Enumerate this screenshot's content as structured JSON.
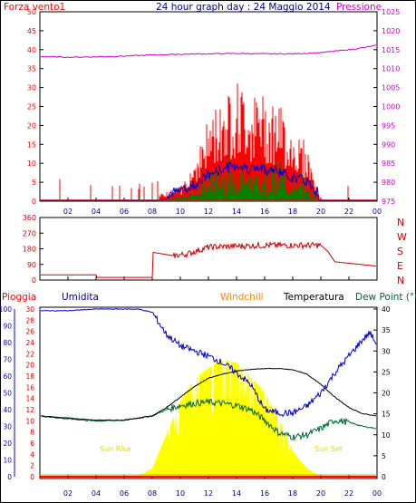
{
  "header": {
    "title": "24 hour graph day : 24 Maggio 2014",
    "left_label": "Forza vento1",
    "right_label": "Pressione"
  },
  "wind_panel": {
    "y_ticks_left": [
      "0",
      "5",
      "10",
      "15",
      "20",
      "25",
      "30",
      "35",
      "40",
      "45",
      "50"
    ],
    "y_ticks_right": [
      "975",
      "980",
      "985",
      "990",
      "995",
      "1000",
      "1005",
      "1010",
      "1015",
      "1020",
      "1025"
    ]
  },
  "direction_panel": {
    "y_ticks": [
      "0",
      "90",
      "180",
      "270",
      "360"
    ],
    "compass": [
      "N",
      "W",
      "S",
      "E",
      "N"
    ]
  },
  "bottom_panel": {
    "labels": {
      "rain": "Pioggia",
      "humidity": "Umidita",
      "windchill": "Windchill",
      "temperature": "Temperatura",
      "dewpoint": "Dew Point (°C"
    },
    "y_ticks_rain": [
      "0",
      "2",
      "4",
      "6",
      "8",
      "10",
      "12",
      "14",
      "16",
      "18",
      "20",
      "22",
      "24",
      "26",
      "28",
      "30"
    ],
    "y_ticks_humidity": [
      "0",
      "10",
      "20",
      "30",
      "40",
      "50",
      "60",
      "70",
      "80",
      "90",
      "100"
    ],
    "y_ticks_temp": [
      "0",
      "5",
      "10",
      "15",
      "20",
      "25",
      "30",
      "35",
      "40"
    ],
    "sun_rise": "Sun Rise",
    "sun_set": "Sun Set"
  },
  "x_ticks": [
    "02",
    "04",
    "06",
    "08",
    "10",
    "12",
    "14",
    "16",
    "18",
    "20",
    "22",
    "00"
  ],
  "colors": {
    "wind": "#ff0000",
    "gust_green": "#008000",
    "wind_avg": "#0000cc",
    "pressure": "#cc00cc",
    "direction": "#cc0000",
    "humidity": "#0000cc",
    "temperature": "#000000",
    "dewpoint": "#006633",
    "solar": "#ffff00",
    "rain": "#ff0000",
    "windchill": "#ff8800"
  },
  "chart_data": [
    {
      "type": "line",
      "title": "24 hour graph day : 24 Maggio 2014",
      "series": [
        {
          "name": "Forza vento1",
          "x": [
            0,
            2,
            4,
            6,
            8,
            10,
            11,
            12,
            13,
            14,
            15,
            16,
            17,
            18,
            19,
            19.5,
            20,
            22,
            24
          ],
          "values": [
            1,
            1,
            0,
            0,
            1,
            3,
            9,
            17,
            22,
            25,
            22,
            22,
            20,
            15,
            12,
            6,
            0,
            0,
            0
          ]
        },
        {
          "name": "Pressione",
          "x": [
            0,
            2,
            4,
            6,
            8,
            10,
            12,
            14,
            16,
            18,
            20,
            22,
            23,
            24
          ],
          "values": [
            1013.2,
            1013.0,
            1013.1,
            1013.3,
            1013.6,
            1013.8,
            1013.9,
            1014.0,
            1013.9,
            1013.9,
            1014.2,
            1015.0,
            1015.5,
            1016.2
          ]
        }
      ],
      "ylim_left": [
        0,
        50
      ],
      "ylim_right": [
        975,
        1025
      ]
    },
    {
      "type": "line",
      "series": [
        {
          "x": [
            0,
            4,
            4.01,
            8,
            8.01,
            9.5,
            10.5,
            12,
            14,
            16,
            18,
            20,
            20.5,
            21,
            24
          ],
          "values": [
            30,
            30,
            15,
            15,
            160,
            140,
            150,
            190,
            195,
            200,
            200,
            200,
            165,
            105,
            80
          ]
        }
      ],
      "ylim": [
        0,
        360
      ]
    },
    {
      "type": "line",
      "series": [
        {
          "name": "Umidita",
          "x": [
            0,
            2,
            4,
            6,
            7,
            8,
            9,
            10,
            11,
            12,
            13,
            14,
            15,
            16,
            17,
            18,
            19,
            20,
            21,
            22,
            23,
            23.5,
            24
          ],
          "values": [
            99,
            99,
            100,
            100,
            100,
            98,
            85,
            78,
            75,
            72,
            68,
            62,
            55,
            40,
            38,
            38,
            42,
            50,
            62,
            72,
            82,
            86,
            78
          ]
        },
        {
          "name": "Temperatura",
          "x": [
            0,
            2,
            4,
            6,
            8,
            9,
            10,
            11,
            12,
            13,
            14,
            15,
            16,
            17,
            18,
            19,
            20,
            21,
            22,
            23,
            24
          ],
          "values": [
            14.5,
            14.0,
            13.5,
            13.5,
            14.5,
            16.5,
            19.0,
            21.5,
            23.5,
            24.5,
            25.2,
            25.6,
            25.8,
            25.8,
            25.5,
            24.5,
            22,
            19,
            16.5,
            15,
            14.5
          ]
        },
        {
          "name": "Dew Point (°C",
          "x": [
            0,
            2,
            4,
            6,
            8,
            9,
            10,
            11,
            12,
            13,
            14,
            15,
            16,
            17,
            18,
            19,
            20,
            21,
            22,
            23,
            24
          ],
          "values": [
            14.5,
            13.8,
            13.3,
            13.5,
            14.5,
            16.0,
            17.0,
            17.5,
            17.8,
            17.5,
            17.0,
            16.0,
            13.5,
            10.5,
            9.5,
            10,
            11.5,
            13.5,
            13,
            12,
            11.5
          ]
        },
        {
          "name": "Solar",
          "x": [
            0,
            6,
            7,
            8,
            9,
            10,
            11,
            12,
            13,
            14,
            15,
            16,
            17,
            18,
            19,
            20,
            24
          ],
          "values": [
            0,
            0,
            0,
            5,
            25,
            45,
            58,
            65,
            70,
            68,
            60,
            50,
            35,
            15,
            5,
            0,
            0
          ]
        },
        {
          "name": "Pioggia",
          "x": [
            0,
            24
          ],
          "values": [
            0,
            0
          ]
        }
      ],
      "ylim_rain": [
        0,
        30
      ],
      "ylim_humidity": [
        0,
        100
      ],
      "ylim_temp": [
        0,
        40
      ]
    }
  ]
}
